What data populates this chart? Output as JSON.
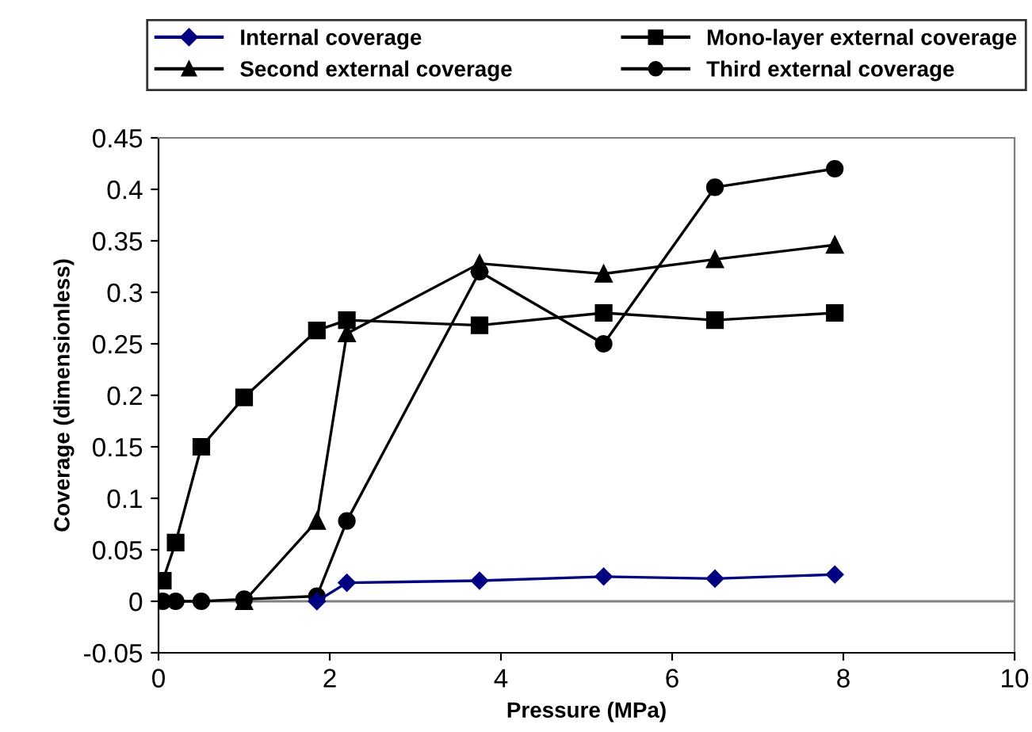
{
  "chart_data": {
    "type": "line",
    "xlabel": "Pressure (MPa)",
    "ylabel": "Coverage (dimensionless)",
    "x": [
      0.05,
      0.2,
      0.5,
      1.0,
      1.85,
      2.2,
      3.75,
      5.2,
      6.5,
      7.9
    ],
    "series": [
      {
        "name": "Internal coverage",
        "color": "#000080",
        "marker": "diamond",
        "values": [
          null,
          null,
          null,
          null,
          0,
          0.018,
          0.02,
          0.024,
          0.022,
          0.026
        ]
      },
      {
        "name": "Mono-layer external coverage",
        "color": "#000000",
        "marker": "square",
        "values": [
          0.02,
          0.057,
          0.15,
          0.198,
          0.263,
          0.273,
          0.268,
          0.28,
          0.273,
          0.28
        ]
      },
      {
        "name": "Second external coverage",
        "color": "#000000",
        "marker": "triangle",
        "values": [
          null,
          null,
          null,
          0,
          0.078,
          0.26,
          0.328,
          0.318,
          0.332,
          0.346
        ]
      },
      {
        "name": "Third external coverage",
        "color": "#000000",
        "marker": "circle",
        "values": [
          0,
          0,
          0,
          0.002,
          0.005,
          0.078,
          0.32,
          0.25,
          0.402,
          0.42
        ]
      }
    ],
    "xlim": [
      0,
      10
    ],
    "xticks": [
      0,
      2,
      4,
      6,
      8,
      10
    ],
    "ylim": [
      -0.05,
      0.45
    ],
    "yticks": [
      -0.05,
      0,
      0.05,
      0.1,
      0.15,
      0.2,
      0.25,
      0.3,
      0.35,
      0.4,
      0.45
    ],
    "ref_lines": [
      {
        "axis": "y",
        "value": 0,
        "color": "#808080"
      }
    ],
    "legend": "top",
    "line_style": "solid"
  }
}
